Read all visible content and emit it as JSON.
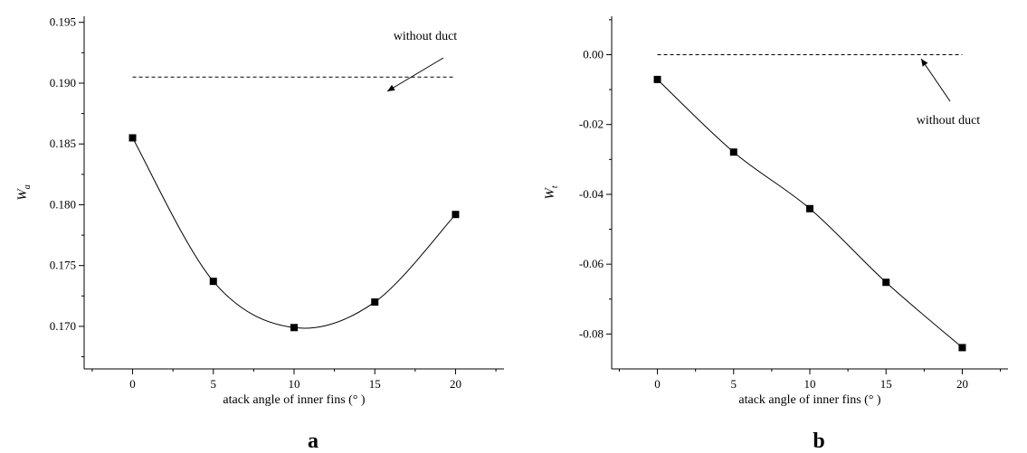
{
  "chart_data": [
    {
      "type": "line",
      "panel": "a",
      "xlabel": "atack angle of inner fins (°  )",
      "ylabel_main": "W",
      "ylabel_sub": "a",
      "xlim": [
        -3,
        23
      ],
      "ylim": [
        0.1665,
        0.1955
      ],
      "xticks": [
        0,
        5,
        10,
        15,
        20
      ],
      "yticks": [
        0.17,
        0.175,
        0.18,
        0.185,
        0.19,
        0.195
      ],
      "ytick_labels": [
        "0.170",
        "0.175",
        "0.180",
        "0.185",
        "0.190",
        "0.195"
      ],
      "series": [
        {
          "x": [
            0,
            5,
            10,
            15,
            20
          ],
          "values": [
            0.1855,
            0.1737,
            0.1699,
            0.172,
            0.1792
          ]
        }
      ],
      "reference": {
        "label": "without duct",
        "y": 0.1905,
        "x_range": [
          0,
          20
        ]
      }
    },
    {
      "type": "line",
      "panel": "b",
      "xlabel": "atack angle of inner fins (°  )",
      "ylabel_main": "W",
      "ylabel_sub": "t",
      "xlim": [
        -3,
        23
      ],
      "ylim": [
        -0.09,
        0.011
      ],
      "xticks": [
        0,
        5,
        10,
        15,
        20
      ],
      "yticks": [
        -0.08,
        -0.06,
        -0.04,
        -0.02,
        0.0
      ],
      "ytick_labels": [
        "-0.08",
        "-0.06",
        "-0.04",
        "-0.02",
        "0.00"
      ],
      "series": [
        {
          "x": [
            0,
            5,
            10,
            15,
            20
          ],
          "values": [
            -0.0071,
            -0.0279,
            -0.0441,
            -0.0652,
            -0.0839
          ]
        }
      ],
      "reference": {
        "label": "without duct",
        "y": 0.0,
        "x_range": [
          0,
          20
        ]
      }
    }
  ],
  "panel_letters": [
    "a",
    "b"
  ]
}
